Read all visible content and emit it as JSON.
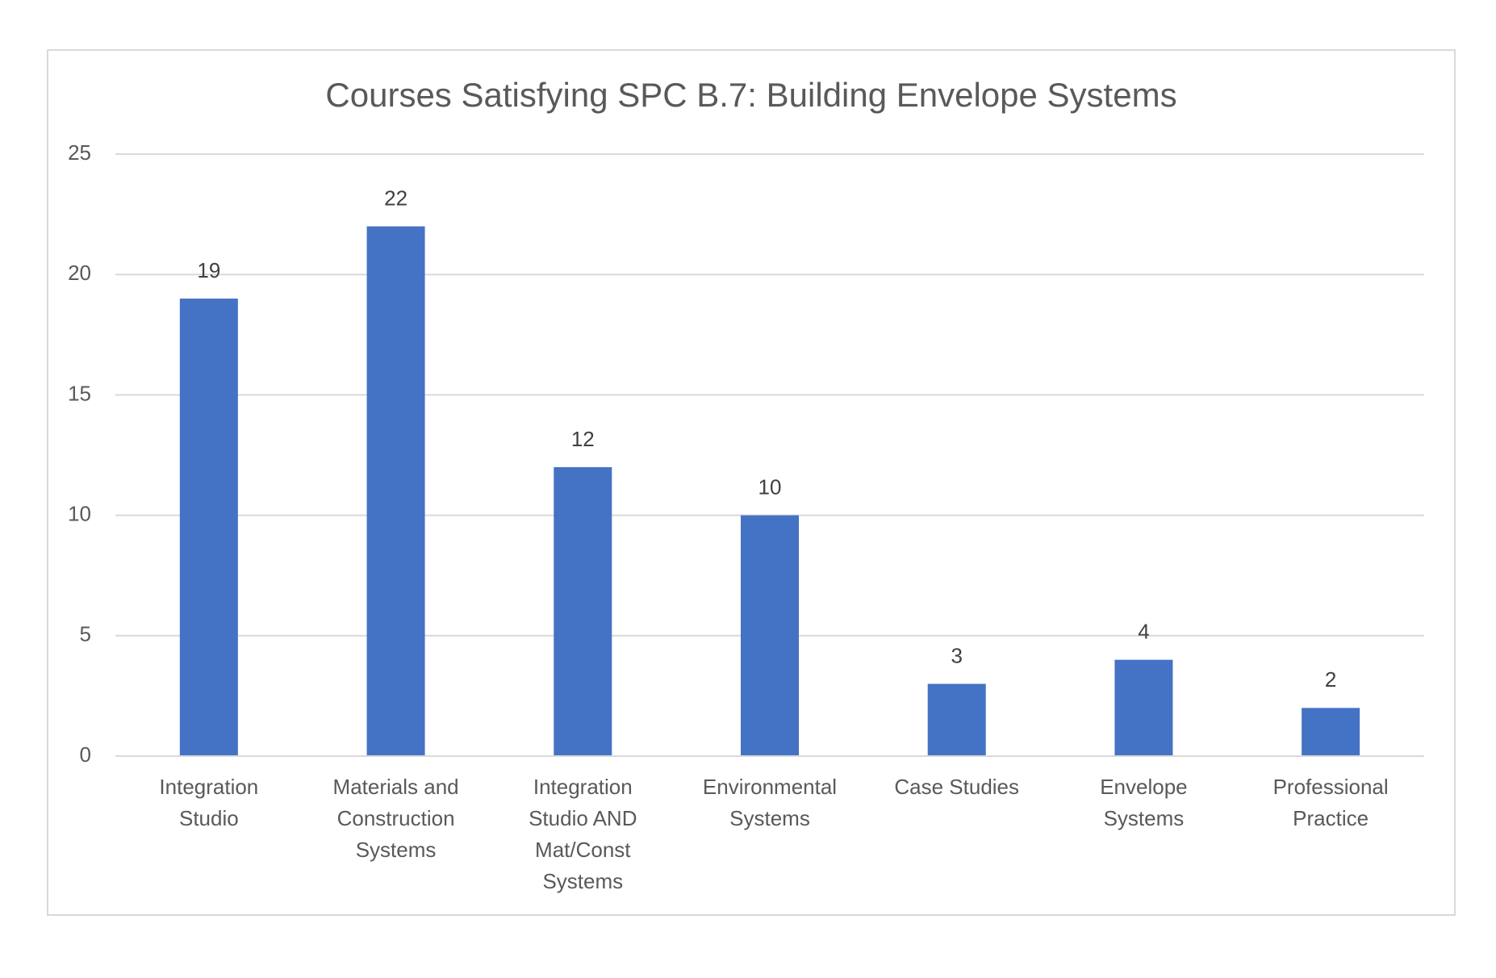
{
  "chart_data": {
    "type": "bar",
    "title": "Courses Satisfying SPC B.7: Building Envelope Systems",
    "categories": [
      "Integration Studio",
      "Materials and Construction Systems",
      "Integration Studio AND Mat/Const Systems",
      "Environmental Systems",
      "Case Studies",
      "Envelope Systems",
      "Professional Practice"
    ],
    "values": [
      19,
      22,
      12,
      10,
      3,
      4,
      2
    ],
    "color": "#4472c4",
    "ylim": [
      0,
      25
    ],
    "yticks": [
      0,
      5,
      10,
      15,
      20,
      25
    ],
    "grid": true
  }
}
